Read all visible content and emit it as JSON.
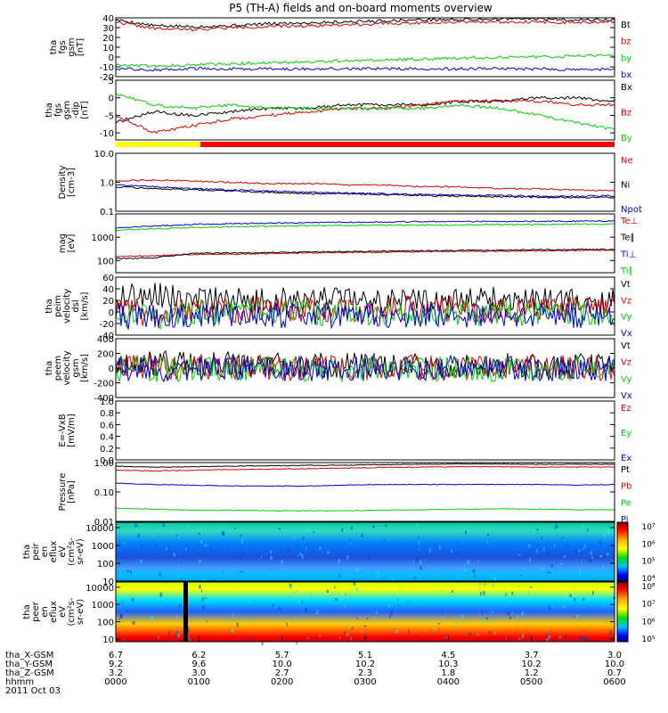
{
  "title": "P5 (TH-A) fields and on-board moments overview",
  "colors": {
    "black": "#000000",
    "red": "#e00000",
    "green": "#00d000",
    "blue": "#0000dd",
    "yellow": "#ffff00",
    "flagRed": "#ff0000"
  },
  "chart_data": [
    {
      "type": "line",
      "id": "fgs_gsm",
      "ylabel": [
        "tha",
        "fgs",
        "gsm",
        "[nT]"
      ],
      "ylim": [
        -20,
        40
      ],
      "yticks": [
        "40",
        "30",
        "20",
        "10",
        "0",
        "-10",
        "-20"
      ],
      "ytick_values": [
        40,
        30,
        20,
        10,
        0,
        -10,
        -20
      ],
      "log": false,
      "series": [
        {
          "name": "Bt",
          "color": "black",
          "values": [
            38,
            32,
            31,
            32,
            34,
            35,
            36,
            37,
            38,
            38,
            39,
            39,
            38,
            38
          ]
        },
        {
          "name": "bz",
          "color": "red",
          "values": [
            36,
            29,
            28,
            30,
            31,
            32,
            33,
            34,
            35,
            36,
            36,
            36,
            35,
            36
          ]
        },
        {
          "name": "by",
          "color": "green",
          "values": [
            -8,
            -9,
            -8,
            -7,
            -6,
            -5,
            -4,
            -3,
            -2,
            -1,
            0,
            0,
            1,
            2
          ]
        },
        {
          "name": "bx",
          "color": "blue",
          "values": [
            -12,
            -13,
            -12,
            -12,
            -12,
            -12,
            -12,
            -12,
            -12,
            -12,
            -12,
            -12,
            -13,
            -12
          ]
        }
      ]
    },
    {
      "type": "line",
      "id": "fgs_gsm_dip",
      "ylabel": [
        "tha",
        "fgs",
        "gsm",
        "-dip",
        "[nT]"
      ],
      "ylim": [
        -12,
        5
      ],
      "yticks": [
        "5",
        "0",
        "-5",
        "-10"
      ],
      "ytick_values": [
        5,
        0,
        -5,
        -10
      ],
      "log": false,
      "series": [
        {
          "name": "Bx",
          "color": "black",
          "values": [
            -7,
            -4,
            -5,
            -4,
            -3,
            -3,
            -2,
            -2,
            -2,
            -1,
            -1,
            0,
            0,
            -1
          ]
        },
        {
          "name": "Bz",
          "color": "red",
          "values": [
            -5,
            -10,
            -8,
            -6,
            -5,
            -4,
            -3,
            -3,
            -2,
            -1,
            -1,
            -1,
            -2,
            -2
          ]
        },
        {
          "name": "By",
          "color": "green",
          "values": [
            1,
            -2,
            -3,
            -2,
            -3,
            -3,
            -3,
            -3,
            -3,
            -2,
            -3,
            -5,
            -7,
            -9
          ]
        }
      ]
    },
    {
      "type": "line",
      "id": "density",
      "ylabel": [
        "Density",
        "[cm-3]"
      ],
      "ylim": [
        0.1,
        10
      ],
      "yticks": [
        "10.0",
        "1.0",
        "0.1"
      ],
      "ytick_values": [
        10,
        1,
        0.1
      ],
      "log": true,
      "series": [
        {
          "name": "Ne",
          "color": "red",
          "values": [
            1.1,
            1.2,
            1.1,
            1.0,
            0.9,
            0.9,
            0.8,
            0.8,
            0.7,
            0.7,
            0.6,
            0.6,
            0.55,
            0.5
          ]
        },
        {
          "name": "Ni",
          "color": "black",
          "values": [
            0.7,
            0.6,
            0.55,
            0.5,
            0.45,
            0.4,
            0.4,
            0.38,
            0.35,
            0.33,
            0.32,
            0.3,
            0.3,
            0.3
          ]
        },
        {
          "name": "Npot",
          "color": "blue",
          "values": [
            0.8,
            0.7,
            0.6,
            0.55,
            0.5,
            0.45,
            0.42,
            0.4,
            0.38,
            0.36,
            0.35,
            0.33,
            0.33,
            0.34
          ]
        }
      ]
    },
    {
      "type": "line",
      "id": "temperature",
      "ylabel": [
        "mag",
        "[eV]"
      ],
      "ylim": [
        30,
        10000
      ],
      "yticks": [
        "1000",
        "100"
      ],
      "ytick_values": [
        1000,
        100
      ],
      "log": true,
      "series": [
        {
          "name": "Te⊥",
          "color": "red",
          "values": [
            150,
            160,
            180,
            190,
            200,
            210,
            220,
            230,
            240,
            250,
            250,
            260,
            270,
            270
          ]
        },
        {
          "name": "Te∥",
          "color": "black",
          "values": [
            120,
            130,
            200,
            210,
            220,
            230,
            240,
            250,
            260,
            270,
            280,
            290,
            300,
            300
          ]
        },
        {
          "name": "Ti⊥",
          "color": "blue",
          "values": [
            2500,
            3000,
            3500,
            3800,
            4000,
            4200,
            4400,
            4500,
            4600,
            4700,
            4800,
            4800,
            4900,
            5000
          ]
        },
        {
          "name": "Ti∥",
          "color": "green",
          "values": [
            2000,
            2300,
            2600,
            2800,
            3000,
            3100,
            3200,
            3300,
            3300,
            3400,
            3500,
            3500,
            3600,
            3600
          ]
        }
      ]
    },
    {
      "type": "line",
      "id": "peim_velocity",
      "ylabel": [
        "tha",
        "peim",
        "velocity",
        "dsl",
        "[km/s]"
      ],
      "ylim": [
        -40,
        60
      ],
      "yticks": [
        "60",
        "40",
        "20",
        "0",
        "-20",
        "-40"
      ],
      "ytick_values": [
        60,
        40,
        20,
        0,
        -20,
        -40
      ],
      "log": false,
      "series": [
        {
          "name": "Vt",
          "color": "black",
          "values": [
            25,
            30,
            22,
            20,
            20,
            21,
            22,
            20,
            20,
            21,
            22,
            20,
            22,
            24
          ]
        },
        {
          "name": "Vz",
          "color": "red",
          "values": [
            5,
            -5,
            2,
            3,
            4,
            3,
            5,
            4,
            5,
            4,
            3,
            4,
            5,
            5
          ]
        },
        {
          "name": "Vy",
          "color": "green",
          "values": [
            -5,
            -8,
            -3,
            -2,
            -3,
            -2,
            -3,
            -2,
            -3,
            -2,
            -3,
            -2,
            -3,
            -3
          ]
        },
        {
          "name": "Vx",
          "color": "blue",
          "values": [
            -8,
            -10,
            -6,
            -5,
            -6,
            -5,
            -6,
            -5,
            -6,
            -5,
            -6,
            -5,
            -6,
            -6
          ]
        }
      ]
    },
    {
      "type": "line",
      "id": "peem_velocity",
      "ylabel": [
        "tha",
        "peem",
        "velocity",
        "gsm",
        "[km/s]"
      ],
      "ylim": [
        -400,
        400
      ],
      "yticks": [
        "400",
        "200",
        "0",
        "-200",
        "-400"
      ],
      "ytick_values": [
        400,
        200,
        0,
        -200,
        -400
      ],
      "log": false,
      "series": [
        {
          "name": "Vt",
          "color": "black",
          "values": [
            60,
            80,
            50,
            50,
            40,
            40,
            40,
            40,
            30,
            30,
            30,
            30,
            30,
            30
          ]
        },
        {
          "name": "Vz",
          "color": "red",
          "values": [
            10,
            20,
            5,
            5,
            5,
            5,
            5,
            5,
            5,
            5,
            5,
            5,
            5,
            5
          ]
        },
        {
          "name": "Vy",
          "color": "green",
          "values": [
            -10,
            -20,
            -5,
            -5,
            -5,
            -5,
            -5,
            -5,
            -5,
            -5,
            -5,
            -5,
            -5,
            -5
          ]
        },
        {
          "name": "Vx",
          "color": "blue",
          "values": [
            -5,
            -10,
            -3,
            -3,
            -3,
            -3,
            -3,
            -3,
            -3,
            -3,
            -3,
            -3,
            -3,
            -3
          ]
        }
      ]
    },
    {
      "type": "line",
      "id": "efield",
      "ylabel": [
        "E=-VxB",
        "[mV/m]"
      ],
      "ylim": [
        0,
        1.0
      ],
      "yticks": [
        "1.0",
        "0.8",
        "0.6",
        "0.4",
        "0.2",
        "0.0"
      ],
      "ytick_values": [
        1.0,
        0.8,
        0.6,
        0.4,
        0.2,
        0.0
      ],
      "log": false,
      "series": [
        {
          "name": "Ez",
          "color": "red",
          "values": []
        },
        {
          "name": "Ey",
          "color": "green",
          "values": []
        },
        {
          "name": "Ex",
          "color": "blue",
          "values": []
        }
      ]
    },
    {
      "type": "line",
      "id": "pressure",
      "ylabel": [
        "Pressure",
        "[nPa]"
      ],
      "ylim": [
        0.01,
        1.0
      ],
      "yticks": [
        "1.00",
        "0.10",
        "0.01"
      ],
      "ytick_values": [
        1.0,
        0.1,
        0.01
      ],
      "log": true,
      "series": [
        {
          "name": "Pt",
          "color": "black",
          "values": [
            0.75,
            0.7,
            0.72,
            0.75,
            0.78,
            0.8,
            0.82,
            0.85,
            0.88,
            0.9,
            0.9,
            0.88,
            0.88,
            0.88
          ]
        },
        {
          "name": "Pb",
          "color": "red",
          "values": [
            0.55,
            0.52,
            0.55,
            0.58,
            0.6,
            0.62,
            0.65,
            0.68,
            0.7,
            0.72,
            0.72,
            0.7,
            0.7,
            0.7
          ]
        },
        {
          "name": "Pe",
          "color": "green",
          "values": [
            0.028,
            0.026,
            0.024,
            0.024,
            0.023,
            0.023,
            0.023,
            0.024,
            0.025,
            0.026,
            0.027,
            0.026,
            0.025,
            0.025
          ]
        },
        {
          "name": "Pi",
          "color": "blue",
          "values": [
            0.2,
            0.18,
            0.17,
            0.16,
            0.16,
            0.16,
            0.17,
            0.18,
            0.18,
            0.18,
            0.18,
            0.18,
            0.17,
            0.18
          ]
        }
      ]
    },
    {
      "type": "heatmap",
      "id": "peir_eflux",
      "ylabel": [
        "tha",
        "peir",
        "en",
        "eflux",
        "eV",
        "(cm²s-",
        "sr-eV)"
      ],
      "ylim": [
        10,
        20000
      ],
      "yticks": [
        "10000",
        "1000",
        "100",
        "10"
      ],
      "ytick_values": [
        10000,
        1000,
        100,
        10
      ],
      "log": true,
      "colorbar": [
        "10⁷",
        "10⁶",
        "10⁵",
        "10⁴"
      ]
    },
    {
      "type": "heatmap",
      "id": "peer_eflux",
      "ylabel": [
        "tha",
        "peer",
        "en",
        "eflux",
        "eV",
        "(cm²s-",
        "sr-eV)"
      ],
      "ylim": [
        7,
        20000
      ],
      "yticks": [
        "10000",
        "1000",
        "100",
        "10"
      ],
      "ytick_values": [
        10000,
        1000,
        100,
        10
      ],
      "log": true,
      "colorbar": [
        "10⁸",
        "10⁷",
        "10⁶",
        "10⁵"
      ]
    }
  ],
  "flag_bar": {
    "yellow_until_fraction": 0.17
  },
  "ephemeris": {
    "labels": [
      "tha_X-GSM",
      "tha_Y-GSM",
      "tha_Z-GSM",
      "hhmm",
      "2011 Oct 03"
    ],
    "x": [
      "6.7",
      "6.2",
      "5.7",
      "5.1",
      "4.5",
      "3.7",
      "3.0"
    ],
    "y": [
      "9.2",
      "9.6",
      "10.0",
      "10.2",
      "10.3",
      "10.2",
      "10.0"
    ],
    "z": [
      "3.2",
      "3.0",
      "2.7",
      "2.3",
      "1.8",
      "1.2",
      "0.7"
    ],
    "hhmm": [
      "0000",
      "0100",
      "0200",
      "0300",
      "0400",
      "0500",
      "0600"
    ]
  }
}
